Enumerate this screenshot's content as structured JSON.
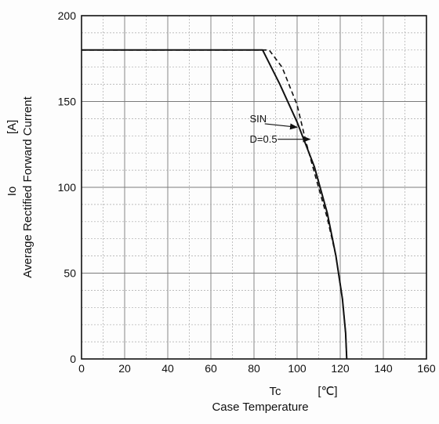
{
  "chart_data": {
    "type": "line",
    "xlim": [
      0,
      160
    ],
    "ylim": [
      0,
      200
    ],
    "x_ticks": [
      0,
      20,
      40,
      60,
      80,
      100,
      120,
      140,
      160
    ],
    "y_ticks": [
      0,
      50,
      100,
      150,
      200
    ],
    "grid": true,
    "x_label": {
      "symbol": "Tc",
      "unit": "[℃]",
      "name": "Case Temperature"
    },
    "y_label": {
      "symbol": "Io",
      "unit": "[A]",
      "name": "Average Rectified Forward Current"
    },
    "series": [
      {
        "name": "SIN",
        "style": "solid",
        "points": [
          [
            0,
            180
          ],
          [
            84,
            180
          ],
          [
            92,
            160
          ],
          [
            100,
            138
          ],
          [
            108,
            112
          ],
          [
            114,
            85
          ],
          [
            118,
            60
          ],
          [
            121,
            35
          ],
          [
            122.5,
            15
          ],
          [
            123,
            0
          ]
        ]
      },
      {
        "name": "D=0.5",
        "style": "dashed",
        "points": [
          [
            0,
            180
          ],
          [
            87,
            180
          ],
          [
            93,
            170
          ],
          [
            100,
            148
          ],
          [
            104,
            127
          ],
          [
            109,
            104
          ],
          [
            114,
            82
          ],
          [
            118,
            60
          ],
          [
            121,
            35
          ],
          [
            122.5,
            15
          ],
          [
            123,
            0
          ]
        ]
      }
    ],
    "annotations": [
      {
        "text": "SIN",
        "target": "SIN"
      },
      {
        "text": "D=0.5",
        "target": "D=0.5"
      }
    ],
    "colors": {
      "line": "#111111",
      "grid_major": "#7a7a7a",
      "grid_minor": "#a8a8a8"
    }
  }
}
